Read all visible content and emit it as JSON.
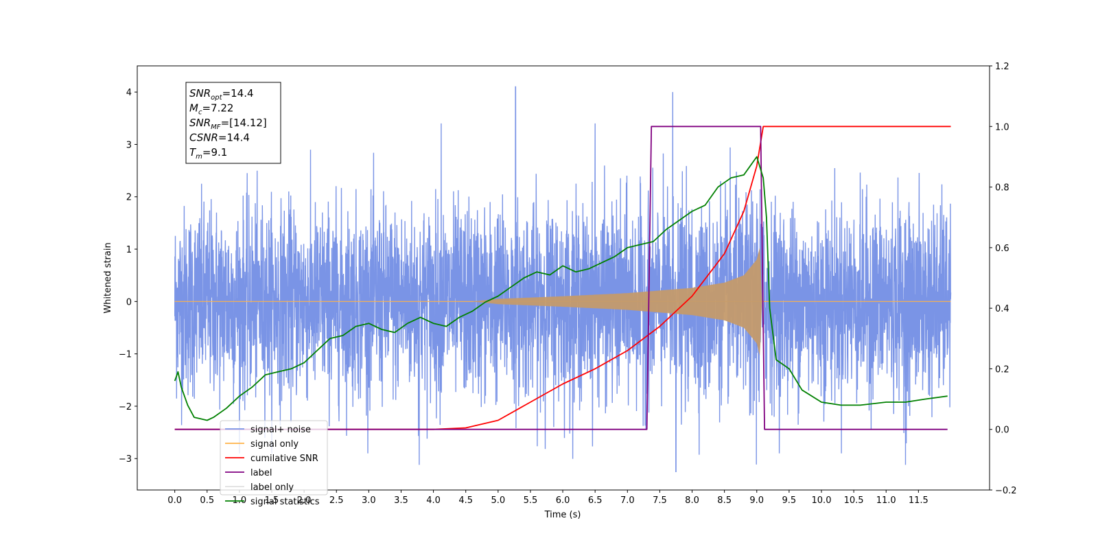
{
  "chart_data": {
    "type": "line",
    "xlabel": "Time (s)",
    "ylabel": "Whitened strain",
    "ylabel_right": "",
    "xlim": [
      -0.58,
      12.6
    ],
    "ylim_left": [
      -3.6,
      4.5
    ],
    "ylim_right": [
      -0.2,
      1.2
    ],
    "x_ticks": [
      "0.0",
      "0.5",
      "1.0",
      "1.5",
      "2.0",
      "2.5",
      "3.0",
      "3.5",
      "4.0",
      "4.5",
      "5.0",
      "5.5",
      "6.0",
      "6.5",
      "7.0",
      "7.5",
      "8.0",
      "8.5",
      "9.0",
      "9.5",
      "10.0",
      "10.5",
      "11.0",
      "11.5"
    ],
    "y_ticks_left": [
      "−3",
      "−2",
      "−1",
      "0",
      "1",
      "2",
      "3",
      "4"
    ],
    "y_ticks_right": [
      "−0.2",
      "0.0",
      "0.2",
      "0.4",
      "0.6",
      "0.8",
      "1.0",
      "1.2"
    ],
    "grid": false,
    "legend_position": "lower-left",
    "info_box": {
      "lines": [
        {
          "main": "SNR",
          "sub": "opt",
          "value": "=14.4"
        },
        {
          "main": "M",
          "sub": "c",
          "value": "=7.22"
        },
        {
          "main": "SNR",
          "sub": "MF",
          "value": "=[14.12]"
        },
        {
          "main": "CSNR",
          "sub": "",
          "value": "=14.4"
        },
        {
          "main": "T",
          "sub": "m",
          "value": "=9.1"
        }
      ]
    },
    "series": [
      {
        "name": "signal+ noise",
        "axis": "left",
        "color": "#7a94e6",
        "kind": "noise_band",
        "x_range": [
          0.0,
          12.0
        ],
        "noise_sigma": 1.0,
        "notable_peaks": [
          {
            "x": 5.27,
            "y": 4.1
          },
          {
            "x": 7.7,
            "y": 4.0
          },
          {
            "x": 4.12,
            "y": 3.4
          },
          {
            "x": 6.5,
            "y": 3.4
          },
          {
            "x": 7.75,
            "y": -3.25
          },
          {
            "x": 3.78,
            "y": -3.12
          },
          {
            "x": 11.3,
            "y": -3.12
          }
        ]
      },
      {
        "name": "signal only",
        "axis": "left",
        "color": "#ffb347",
        "kind": "chirp_envelope",
        "x_range": [
          0.0,
          12.0
        ],
        "envelope": [
          [
            0.0,
            0.0
          ],
          [
            4.6,
            0.0
          ],
          [
            5.0,
            0.05
          ],
          [
            6.0,
            0.1
          ],
          [
            7.0,
            0.16
          ],
          [
            8.0,
            0.26
          ],
          [
            8.5,
            0.36
          ],
          [
            8.8,
            0.5
          ],
          [
            9.0,
            0.8
          ],
          [
            9.05,
            1.05
          ],
          [
            9.08,
            0.0
          ],
          [
            12.0,
            0.0
          ]
        ]
      },
      {
        "name": "cumilative SNR",
        "axis": "right",
        "color": "#ff0000",
        "x": [
          0.0,
          4.0,
          4.5,
          5.0,
          5.5,
          6.0,
          6.5,
          7.0,
          7.5,
          8.0,
          8.5,
          8.8,
          9.0,
          9.1,
          12.0
        ],
        "values": [
          0.0,
          0.0,
          0.005,
          0.03,
          0.09,
          0.15,
          0.2,
          0.26,
          0.34,
          0.44,
          0.58,
          0.72,
          0.87,
          1.0,
          1.0
        ]
      },
      {
        "name": "label",
        "axis": "right",
        "color": "#800080",
        "x": [
          0.0,
          7.3,
          7.37,
          9.06,
          9.12,
          11.95
        ],
        "values": [
          0.0,
          0.0,
          1.0,
          1.0,
          0.0,
          0.0
        ]
      },
      {
        "name": "label only",
        "axis": "right",
        "color": "#e0e0e0",
        "hidden": true
      },
      {
        "name": "signal statistics",
        "axis": "right",
        "color": "#008000",
        "x": [
          0.0,
          0.05,
          0.1,
          0.2,
          0.3,
          0.4,
          0.5,
          0.6,
          0.8,
          1.0,
          1.2,
          1.4,
          1.6,
          1.8,
          2.0,
          2.2,
          2.4,
          2.6,
          2.8,
          3.0,
          3.2,
          3.4,
          3.6,
          3.8,
          4.0,
          4.2,
          4.4,
          4.6,
          4.8,
          5.0,
          5.2,
          5.4,
          5.6,
          5.8,
          6.0,
          6.2,
          6.4,
          6.6,
          6.8,
          7.0,
          7.2,
          7.4,
          7.6,
          7.8,
          8.0,
          8.2,
          8.4,
          8.6,
          8.8,
          8.9,
          9.0,
          9.1,
          9.15,
          9.2,
          9.3,
          9.5,
          9.7,
          10.0,
          10.3,
          10.6,
          11.0,
          11.3,
          11.6,
          11.95
        ],
        "values": [
          0.16,
          0.19,
          0.14,
          0.08,
          0.04,
          0.035,
          0.03,
          0.04,
          0.07,
          0.11,
          0.14,
          0.18,
          0.19,
          0.2,
          0.22,
          0.26,
          0.3,
          0.31,
          0.34,
          0.35,
          0.33,
          0.32,
          0.35,
          0.37,
          0.35,
          0.34,
          0.37,
          0.39,
          0.42,
          0.44,
          0.47,
          0.5,
          0.52,
          0.51,
          0.54,
          0.52,
          0.53,
          0.55,
          0.57,
          0.6,
          0.61,
          0.62,
          0.66,
          0.69,
          0.72,
          0.74,
          0.8,
          0.83,
          0.84,
          0.87,
          0.9,
          0.83,
          0.7,
          0.4,
          0.23,
          0.2,
          0.13,
          0.09,
          0.08,
          0.08,
          0.09,
          0.09,
          0.1,
          0.11
        ]
      }
    ]
  }
}
